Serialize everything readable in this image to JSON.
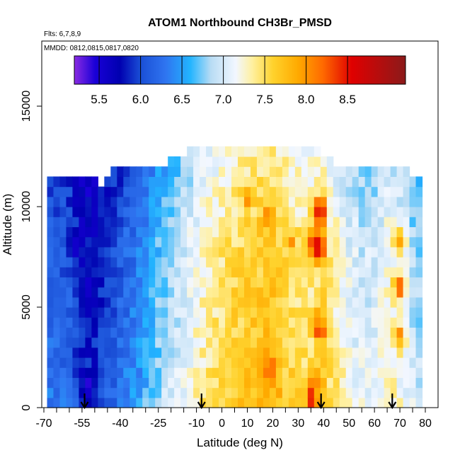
{
  "chart_data": {
    "type": "heatmap",
    "title": "ATOM1 Northbound CH3Br_PMSD",
    "subtitle_flights": "Flts: 6,7,8,9",
    "subtitle_dates": "MMDD: 0812,0815,0817,0820",
    "xlabel": "Latitude (deg N)",
    "ylabel": "Altitude (m)",
    "xlim": [
      -70,
      80
    ],
    "ylim": [
      0,
      17500
    ],
    "xticks": [
      -70,
      -55,
      -40,
      -25,
      -10,
      0,
      10,
      20,
      30,
      40,
      50,
      60,
      70,
      80
    ],
    "xtick_labels": [
      "-70",
      "-55",
      "-40",
      "-25",
      "-10",
      "0",
      "10",
      "20",
      "30",
      "40",
      "50",
      "60",
      "70",
      "80"
    ],
    "x_minor_ticks": [
      -65,
      -60,
      -50,
      -45,
      -35,
      -30,
      -20,
      -15,
      -5,
      5,
      15,
      25,
      35,
      45,
      55,
      65,
      75
    ],
    "yticks": [
      0,
      5000,
      10000,
      15000
    ],
    "ytick_labels": [
      "0",
      "5000",
      "10000",
      "15000"
    ],
    "colorbar": {
      "range": [
        5.2,
        9.2
      ],
      "ticks": [
        5.5,
        6.0,
        6.5,
        7.0,
        7.5,
        8.0,
        8.5
      ],
      "tick_labels": [
        "5.5",
        "6.0",
        "6.5",
        "7.0",
        "7.5",
        "8.0",
        "8.5"
      ],
      "stops": [
        {
          "v": 5.2,
          "c": "#8a2be2"
        },
        {
          "v": 5.45,
          "c": "#1a00d8"
        },
        {
          "v": 5.75,
          "c": "#0000b0"
        },
        {
          "v": 6.0,
          "c": "#1a4fd6"
        },
        {
          "v": 6.3,
          "c": "#2f74f0"
        },
        {
          "v": 6.6,
          "c": "#22b4ff"
        },
        {
          "v": 6.85,
          "c": "#b8dcf4"
        },
        {
          "v": 7.15,
          "c": "#f2f7ff"
        },
        {
          "v": 7.35,
          "c": "#fff0a0"
        },
        {
          "v": 7.6,
          "c": "#ffd22c"
        },
        {
          "v": 7.9,
          "c": "#ffaa00"
        },
        {
          "v": 8.2,
          "c": "#ff6a00"
        },
        {
          "v": 8.55,
          "c": "#e00000"
        },
        {
          "v": 9.2,
          "c": "#8b1a1a"
        }
      ]
    },
    "grid": {
      "lat_start": -67.5,
      "lat_step": 2.5,
      "alt_start": 0,
      "alt_step": 500,
      "latitude_profile": {
        "lats": [
          -67.5,
          -60,
          -55,
          -50,
          -45,
          -40,
          -35,
          -30,
          -25,
          -20,
          -15,
          -10,
          -5,
          0,
          5,
          10,
          15,
          20,
          25,
          30,
          35,
          40,
          45,
          50,
          55,
          60,
          65,
          70,
          75,
          79
        ],
        "values": [
          6.2,
          6.1,
          5.8,
          5.8,
          6.0,
          6.15,
          6.3,
          6.5,
          6.7,
          6.85,
          7.0,
          7.2,
          7.35,
          7.45,
          7.55,
          7.6,
          7.65,
          7.7,
          7.55,
          7.45,
          7.4,
          7.5,
          7.3,
          7.1,
          7.0,
          7.0,
          7.2,
          7.1,
          6.9,
          6.8
        ]
      },
      "altitude_profile": {
        "alts": [
          0,
          2000,
          5000,
          8000,
          10000,
          12000,
          13000
        ],
        "values": [
          0.15,
          0.05,
          0.0,
          -0.05,
          -0.15,
          -0.25,
          -0.35
        ]
      },
      "top_altitude_profile": {
        "lats": [
          -67.5,
          -52.5,
          -47.5,
          -40,
          -30,
          -22,
          -15,
          5,
          35,
          40,
          45,
          60,
          70,
          75,
          79.5
        ],
        "tops": [
          11500,
          11500,
          11000,
          12000,
          12000,
          12000,
          12500,
          13000,
          13000,
          12500,
          12000,
          12000,
          12000,
          11500,
          11500
        ]
      },
      "hotspots": [
        {
          "lat": 38.5,
          "alt": 9500,
          "value": 8.6
        },
        {
          "lat": 38.5,
          "alt": 7750,
          "value": 8.6
        },
        {
          "lat": 35,
          "alt": 8000,
          "value": 8.2
        },
        {
          "lat": 38.5,
          "alt": 3750,
          "value": 8.4
        },
        {
          "lat": 19,
          "alt": 1750,
          "value": 8.3
        },
        {
          "lat": 35,
          "alt": 250,
          "value": 8.4
        },
        {
          "lat": 70,
          "alt": 8000,
          "value": 8.0
        },
        {
          "lat": 70,
          "alt": 5750,
          "value": 8.2
        },
        {
          "lat": 70,
          "alt": 3250,
          "value": 8.0
        },
        {
          "lat": 10,
          "alt": 10250,
          "value": 7.9
        },
        {
          "lat": 18,
          "alt": 9250,
          "value": 7.9
        },
        {
          "lat": 27,
          "alt": 8000,
          "value": 7.9
        },
        {
          "lat": 37,
          "alt": 1250,
          "value": 8.0
        },
        {
          "lat": -52.5,
          "alt": 750,
          "value": 5.3
        },
        {
          "lat": -58,
          "alt": 7750,
          "value": 5.6
        },
        {
          "lat": -53,
          "alt": 6250,
          "value": 5.6
        }
      ]
    },
    "flight_markers": [
      -54,
      -8,
      39,
      67
    ]
  }
}
